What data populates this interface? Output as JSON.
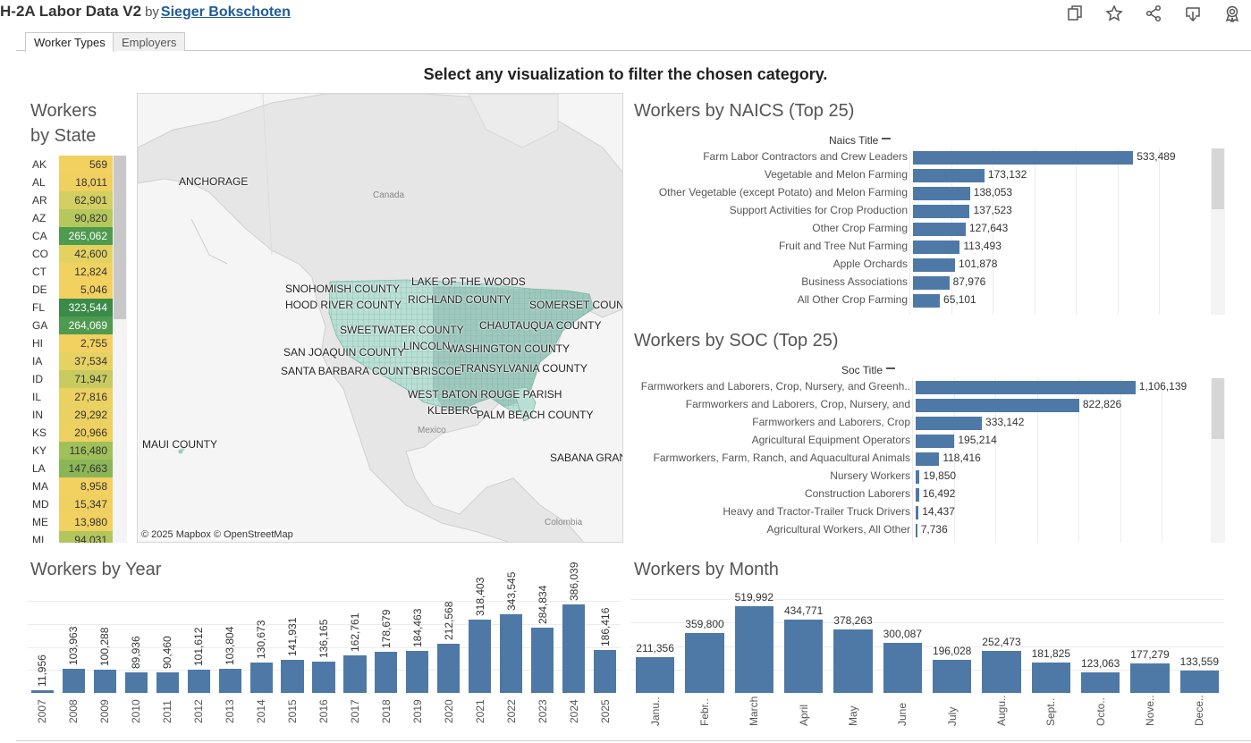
{
  "header": {
    "title": "H-2A Labor Data V2",
    "by": "by",
    "author": "Sieger Bokschoten",
    "icons": [
      "duplicate-icon",
      "star-icon",
      "share-icon",
      "download-icon",
      "badge-icon"
    ]
  },
  "tabs": [
    {
      "label": "Worker Types",
      "active": true
    },
    {
      "label": "Employers",
      "active": false
    }
  ],
  "headline": "Select any visualization to filter the chosen category.",
  "state_section": {
    "title_line1": "Workers",
    "title_line2": "by State",
    "rows": [
      {
        "code": "AK",
        "value": "569",
        "color": "#f3d160"
      },
      {
        "code": "AL",
        "value": "18,011",
        "color": "#f0d060"
      },
      {
        "code": "AR",
        "value": "62,901",
        "color": "#d3cf62"
      },
      {
        "code": "AZ",
        "value": "90,820",
        "color": "#b6c75d"
      },
      {
        "code": "CA",
        "value": "265,062",
        "color": "#4e9a4f",
        "dark": true
      },
      {
        "code": "CO",
        "value": "42,600",
        "color": "#e3d262"
      },
      {
        "code": "CT",
        "value": "12,824",
        "color": "#f1d160"
      },
      {
        "code": "DE",
        "value": "5,046",
        "color": "#f3d160"
      },
      {
        "code": "FL",
        "value": "323,544",
        "color": "#3a8a48",
        "dark": true
      },
      {
        "code": "GA",
        "value": "264,069",
        "color": "#4e9a4f",
        "dark": true
      },
      {
        "code": "HI",
        "value": "2,755",
        "color": "#f3d160"
      },
      {
        "code": "IA",
        "value": "37,534",
        "color": "#e5d262"
      },
      {
        "code": "ID",
        "value": "71,947",
        "color": "#c8cc60"
      },
      {
        "code": "IL",
        "value": "27,816",
        "color": "#ebd161"
      },
      {
        "code": "IN",
        "value": "29,292",
        "color": "#ead161"
      },
      {
        "code": "KS",
        "value": "20,966",
        "color": "#eed160"
      },
      {
        "code": "KY",
        "value": "116,480",
        "color": "#a1c05a"
      },
      {
        "code": "LA",
        "value": "147,663",
        "color": "#8bb657"
      },
      {
        "code": "MA",
        "value": "8,958",
        "color": "#f2d160"
      },
      {
        "code": "MD",
        "value": "15,347",
        "color": "#f0d060"
      },
      {
        "code": "ME",
        "value": "13,980",
        "color": "#f1d160"
      },
      {
        "code": "MI",
        "value": "94,031",
        "color": "#b3c65d"
      }
    ]
  },
  "map": {
    "labels": [
      {
        "text": "ANCHORAGE"
      },
      {
        "text": "SNOHOMISH COUNTY"
      },
      {
        "text": "LAKE OF THE WOODS"
      },
      {
        "text": "RICHLAND COUNTY"
      },
      {
        "text": "HOOD RIVER COUNTY"
      },
      {
        "text": "SOMERSET COUNTY"
      },
      {
        "text": "CHAUTAUQUA COUNTY"
      },
      {
        "text": "SWEETWATER COUNTY"
      },
      {
        "text": "LINCOLN"
      },
      {
        "text": "WASHINGTON COUNTY"
      },
      {
        "text": "SAN JOAQUIN COUNTY"
      },
      {
        "text": "SANTA BARBARA COUNTY"
      },
      {
        "text": "BRISCOE"
      },
      {
        "text": "TRANSYLVANIA COUNTY"
      },
      {
        "text": "WEST BATON ROUGE PARISH"
      },
      {
        "text": "KLEBERG"
      },
      {
        "text": "PALM BEACH COUNTY"
      },
      {
        "text": "MAUI COUNTY"
      },
      {
        "text": "SABANA GRANDE"
      }
    ],
    "geo_labels": [
      "Canada",
      "Mexico",
      "Colombia"
    ],
    "credit": "© 2025 Mapbox  © OpenStreetMap"
  },
  "chart_data": [
    {
      "type": "bar",
      "orientation": "horizontal",
      "title": "Workers by NAICS (Top 25)",
      "ylabel": "Naics Title",
      "categories": [
        "Farm Labor Contractors and Crew Leaders",
        "Vegetable and Melon Farming",
        "Other Vegetable (except Potato) and Melon Farming",
        "Support Activities for Crop Production",
        "Other Crop Farming",
        "Fruit and Tree Nut Farming",
        "Apple Orchards",
        "Business Associations",
        "All Other Crop Farming"
      ],
      "values": [
        533489,
        173132,
        138053,
        137523,
        127643,
        113493,
        101878,
        87976,
        65101
      ],
      "labels": [
        "533,489",
        "173,132",
        "138,053",
        "137,523",
        "127,643",
        "113,493",
        "101,878",
        "87,976",
        "65,101"
      ],
      "xlim": [
        0,
        650000
      ]
    },
    {
      "type": "bar",
      "orientation": "horizontal",
      "title": "Workers by SOC (Top 25)",
      "ylabel": "Soc Title",
      "categories": [
        "Farmworkers and Laborers, Crop, Nursery, and Greenh..",
        "Farmworkers and Laborers, Crop, Nursery, and",
        "Farmworkers and Laborers, Crop",
        "Agricultural Equipment Operators",
        "Farmworkers, Farm, Ranch, and Aquacultural Animals",
        "Nursery Workers",
        "Construction Laborers",
        "Heavy and Tractor-Trailer Truck Drivers",
        "Agricultural Workers, All Other"
      ],
      "values": [
        1106139,
        822826,
        333142,
        195214,
        118416,
        19850,
        16492,
        14437,
        7736
      ],
      "labels": [
        "1,106,139",
        "822,826",
        "333,142",
        "195,214",
        "118,416",
        "19,850",
        "16,492",
        "14,437",
        "7,736"
      ],
      "xlim": [
        0,
        1350000
      ]
    },
    {
      "type": "bar",
      "title": "Workers by Year",
      "categories": [
        "2007",
        "2008",
        "2009",
        "2010",
        "2011",
        "2012",
        "2013",
        "2014",
        "2015",
        "2016",
        "2017",
        "2018",
        "2019",
        "2020",
        "2021",
        "2022",
        "2023",
        "2024",
        "2025"
      ],
      "values": [
        11956,
        103963,
        100288,
        89936,
        90460,
        101612,
        103804,
        130673,
        141931,
        136165,
        162761,
        178679,
        184463,
        212568,
        318403,
        343545,
        284834,
        386039,
        186416
      ],
      "labels": [
        "11,956",
        "103,963",
        "100,288",
        "89,936",
        "90,460",
        "101,612",
        "103,804",
        "130,673",
        "141,931",
        "136,165",
        "162,761",
        "178,679",
        "184,463",
        "212,568",
        "318,403",
        "343,545",
        "284,834",
        "386,039",
        "186,416"
      ],
      "ylim": [
        0,
        400000
      ]
    },
    {
      "type": "bar",
      "title": "Workers by Month",
      "categories": [
        "Janu..",
        "Febr..",
        "March",
        "April",
        "May",
        "June",
        "July",
        "Augu..",
        "Sept..",
        "Octo..",
        "Nove..",
        "Dece.."
      ],
      "values": [
        211356,
        359800,
        519992,
        434771,
        378263,
        300087,
        196028,
        252473,
        181825,
        123063,
        177279,
        133559
      ],
      "labels": [
        "211,356",
        "359,800",
        "519,992",
        "434,771",
        "378,263",
        "300,087",
        "196,028",
        "252,473",
        "181,825",
        "123,063",
        "177,279",
        "133,559"
      ],
      "ylim": [
        0,
        560000
      ]
    }
  ]
}
